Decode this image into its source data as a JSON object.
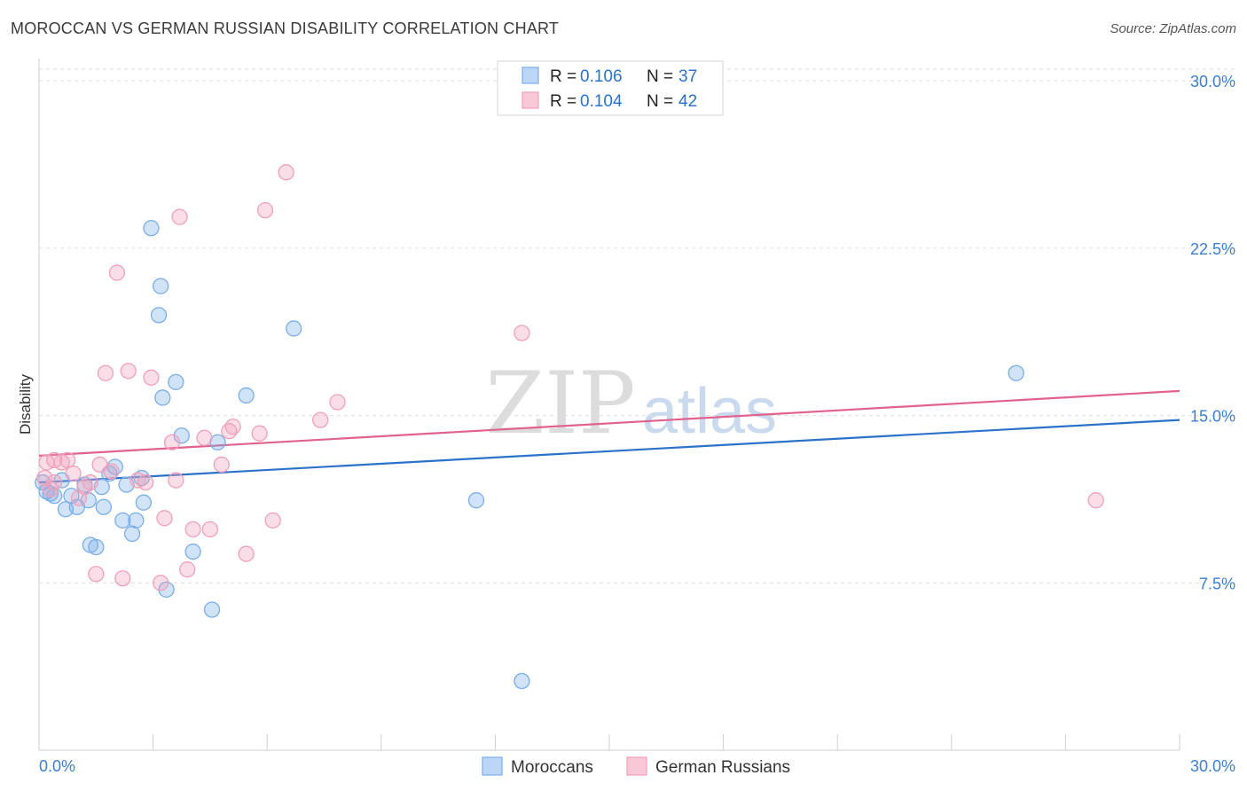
{
  "title": "MOROCCAN VS GERMAN RUSSIAN DISABILITY CORRELATION CHART",
  "source": "Source: ZipAtlas.com",
  "watermark": {
    "zip": "ZIP",
    "atlas": "atlas"
  },
  "legend_top": [
    {
      "r_label": "R = ",
      "r_value": "0.106",
      "n_label": "N = ",
      "n_value": "37"
    },
    {
      "r_label": "R = ",
      "r_value": "0.104",
      "n_label": "N = ",
      "n_value": "42"
    }
  ],
  "chart_data": {
    "type": "scatter",
    "title": "MOROCCAN VS GERMAN RUSSIAN DISABILITY CORRELATION CHART",
    "xlabel": "",
    "ylabel": "Disability",
    "xlim": [
      0,
      30
    ],
    "ylim": [
      0,
      31
    ],
    "x_tick_labels": [
      "0.0%",
      "30.0%"
    ],
    "y_ticks": [
      7.5,
      15.0,
      22.5,
      30.0
    ],
    "y_tick_labels": [
      "7.5%",
      "15.0%",
      "22.5%",
      "30.0%"
    ],
    "grid": true,
    "series": [
      {
        "name": "Moroccans",
        "color": "#7aaee8",
        "line_color": "#2b72c8",
        "r": 0.106,
        "n": 37,
        "trend": {
          "x": [
            0,
            30
          ],
          "y": [
            12.0,
            14.8
          ]
        },
        "points": [
          [
            0.1,
            12.0
          ],
          [
            0.2,
            11.6
          ],
          [
            0.3,
            11.5
          ],
          [
            0.4,
            11.4
          ],
          [
            0.6,
            12.1
          ],
          [
            0.7,
            10.8
          ],
          [
            0.85,
            11.4
          ],
          [
            1.0,
            10.9
          ],
          [
            1.2,
            11.9
          ],
          [
            1.3,
            11.2
          ],
          [
            1.35,
            9.2
          ],
          [
            1.5,
            9.1
          ],
          [
            1.65,
            11.8
          ],
          [
            1.7,
            10.9
          ],
          [
            1.85,
            12.4
          ],
          [
            2.0,
            12.7
          ],
          [
            2.2,
            10.3
          ],
          [
            2.3,
            11.9
          ],
          [
            2.45,
            9.7
          ],
          [
            2.55,
            10.3
          ],
          [
            2.7,
            12.2
          ],
          [
            2.75,
            11.1
          ],
          [
            2.95,
            23.4
          ],
          [
            3.15,
            19.5
          ],
          [
            3.2,
            20.8
          ],
          [
            3.25,
            15.8
          ],
          [
            3.35,
            7.2
          ],
          [
            3.6,
            16.5
          ],
          [
            3.75,
            14.1
          ],
          [
            4.05,
            8.9
          ],
          [
            4.55,
            6.3
          ],
          [
            4.7,
            13.8
          ],
          [
            5.45,
            15.9
          ],
          [
            6.7,
            18.9
          ],
          [
            11.5,
            11.2
          ],
          [
            12.7,
            3.1
          ],
          [
            25.7,
            16.9
          ]
        ]
      },
      {
        "name": "German Russians",
        "color": "#f0a0ba",
        "line_color": "#e0628e",
        "r": 0.104,
        "n": 42,
        "trend": {
          "x": [
            0,
            30
          ],
          "y": [
            13.2,
            16.1
          ]
        },
        "points": [
          [
            0.15,
            12.2
          ],
          [
            0.3,
            11.7
          ],
          [
            0.4,
            12.0
          ],
          [
            0.4,
            13.0
          ],
          [
            0.6,
            12.9
          ],
          [
            0.75,
            13.0
          ],
          [
            0.9,
            12.4
          ],
          [
            1.05,
            11.3
          ],
          [
            1.2,
            11.8
          ],
          [
            1.35,
            12.0
          ],
          [
            1.5,
            7.9
          ],
          [
            1.6,
            12.8
          ],
          [
            1.75,
            16.9
          ],
          [
            1.9,
            12.5
          ],
          [
            2.05,
            21.4
          ],
          [
            2.2,
            7.7
          ],
          [
            2.35,
            17.0
          ],
          [
            2.6,
            12.1
          ],
          [
            2.8,
            12.0
          ],
          [
            2.95,
            16.7
          ],
          [
            3.2,
            7.5
          ],
          [
            3.3,
            10.4
          ],
          [
            3.5,
            13.8
          ],
          [
            3.6,
            12.1
          ],
          [
            3.7,
            23.9
          ],
          [
            3.9,
            8.1
          ],
          [
            4.05,
            9.9
          ],
          [
            4.35,
            14.0
          ],
          [
            4.5,
            9.9
          ],
          [
            4.8,
            12.8
          ],
          [
            5.0,
            14.3
          ],
          [
            5.1,
            14.5
          ],
          [
            5.45,
            8.8
          ],
          [
            5.8,
            14.2
          ],
          [
            5.95,
            24.2
          ],
          [
            6.15,
            10.3
          ],
          [
            6.5,
            25.9
          ],
          [
            7.4,
            14.8
          ],
          [
            7.85,
            15.6
          ],
          [
            12.7,
            18.7
          ],
          [
            27.8,
            11.2
          ],
          [
            0.2,
            12.9
          ]
        ]
      }
    ]
  }
}
